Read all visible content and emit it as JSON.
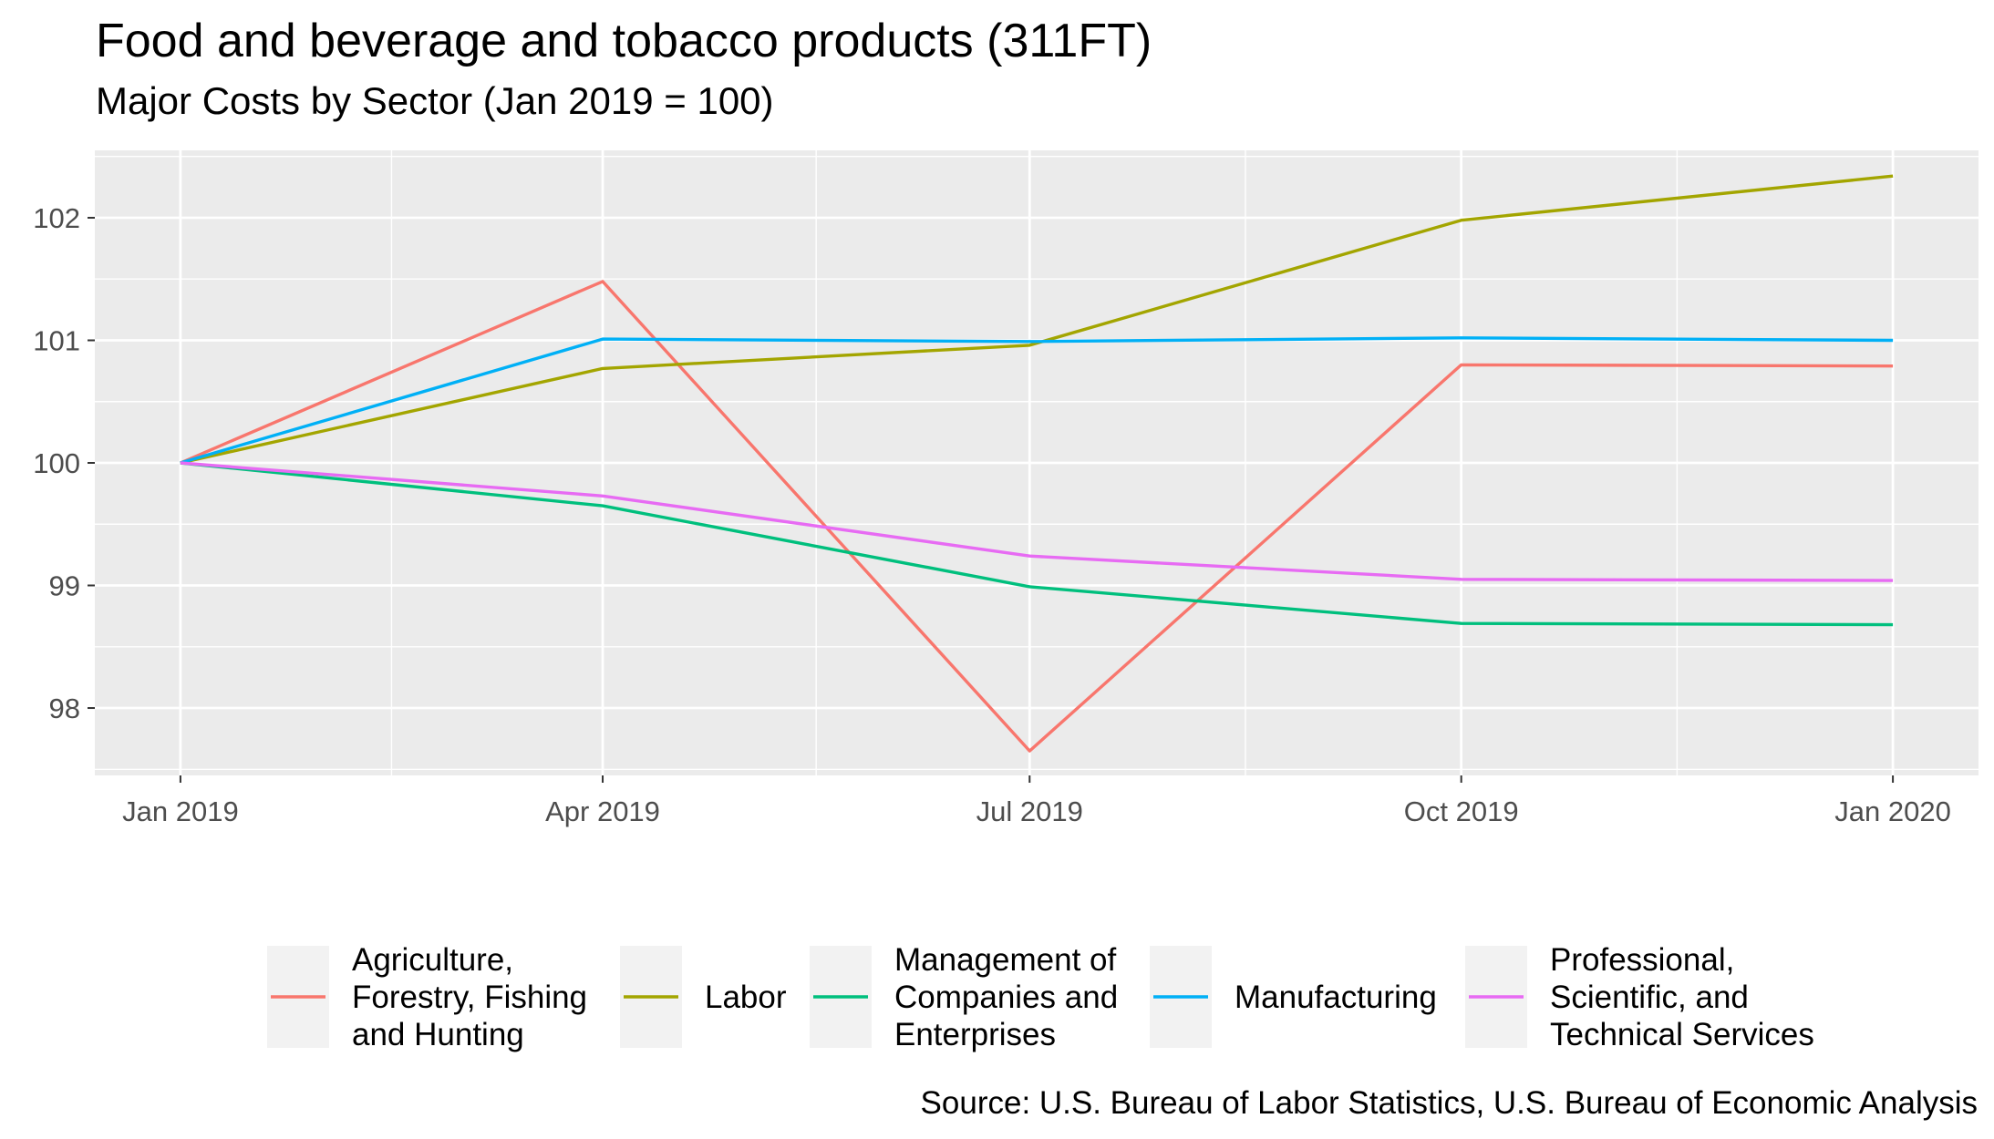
{
  "chart_data": {
    "type": "line",
    "title": "Food and beverage and tobacco products (311FT)",
    "subtitle": "Major Costs by Sector (Jan 2019 = 100)",
    "caption": "Source: U.S. Bureau of Labor Statistics, U.S. Bureau of Economic Analysis",
    "xlabel": "",
    "ylabel": "",
    "x": [
      "2019-01-01",
      "2019-04-01",
      "2019-07-01",
      "2019-10-01",
      "2020-01-01"
    ],
    "x_tick_labels": [
      "Jan 2019",
      "Apr 2019",
      "Jul 2019",
      "Oct 2019",
      "Jan 2020"
    ],
    "y_ticks": [
      98,
      99,
      100,
      101,
      102
    ],
    "ylim": [
      97.45,
      102.55
    ],
    "grid": true,
    "legend_position": "bottom",
    "series": [
      {
        "name": "Agriculture, Forestry, Fishing and Hunting",
        "legend_label": "Agriculture,\nForestry, Fishing\nand Hunting",
        "color": "#F8766D",
        "values": [
          100,
          101.48,
          97.65,
          100.8,
          100.79
        ]
      },
      {
        "name": "Labor",
        "legend_label": "Labor",
        "color": "#A3A500",
        "values": [
          100,
          100.77,
          100.96,
          101.98,
          102.34
        ]
      },
      {
        "name": "Management of Companies and Enterprises",
        "legend_label": "Management of\nCompanies and\nEnterprises",
        "color": "#00BF7D",
        "values": [
          100,
          99.65,
          98.99,
          98.69,
          98.68
        ]
      },
      {
        "name": "Manufacturing",
        "legend_label": "Manufacturing",
        "color": "#00B0F6",
        "values": [
          100,
          101.01,
          100.99,
          101.02,
          101.0
        ]
      },
      {
        "name": "Professional, Scientific, and Technical Services",
        "legend_label": "Professional,\nScientific, and\nTechnical Services",
        "color": "#E76BF3",
        "values": [
          100,
          99.73,
          99.24,
          99.05,
          99.04
        ]
      }
    ]
  }
}
